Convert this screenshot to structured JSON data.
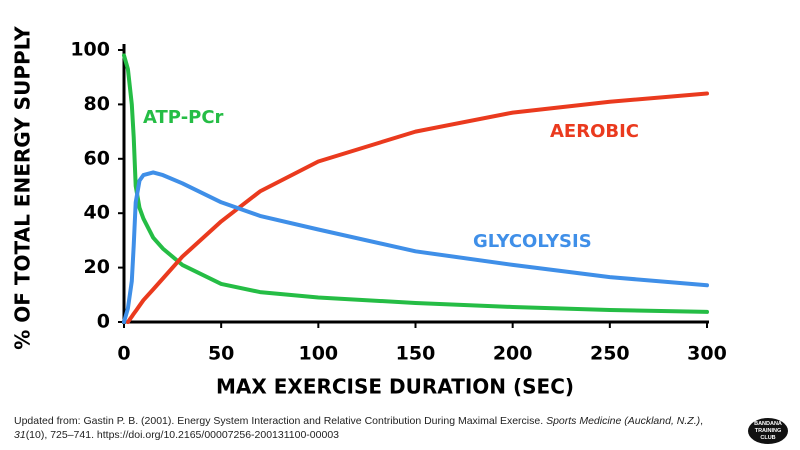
{
  "chart_data": {
    "type": "line",
    "ylabel": "% OF TOTAL ENERGY SUPPLY",
    "xlabel": "MAX EXERCISE DURATION (SEC)",
    "x": [
      0,
      2,
      4,
      5,
      6,
      8,
      10,
      15,
      20,
      30,
      50,
      70,
      100,
      150,
      200,
      250,
      300
    ],
    "series": [
      {
        "name": "ATP-PCr",
        "color": "#25bd45",
        "values": [
          98,
          93,
          80,
          68,
          50,
          42,
          38,
          31,
          27,
          21,
          14,
          11,
          9,
          7,
          5.5,
          4.4,
          3.7
        ]
      },
      {
        "name": "AEROBIC",
        "color": "#ea3a1e",
        "values": [
          null,
          0,
          2,
          3,
          4,
          6,
          8,
          12,
          16,
          24,
          37,
          48,
          59,
          70,
          77,
          81,
          84
        ]
      },
      {
        "name": "GLYCOLYSIS",
        "color": "#3f8fe8",
        "values": [
          0,
          5,
          15,
          28,
          44,
          52,
          54,
          55,
          54,
          51,
          44,
          39,
          34,
          26,
          21,
          16.5,
          13.5
        ]
      }
    ],
    "xlim": [
      0,
      300
    ],
    "ylim": [
      0,
      100
    ],
    "xticks": [
      0,
      50,
      100,
      150,
      200,
      250,
      300
    ],
    "yticks": [
      0,
      20,
      40,
      60,
      80,
      100
    ]
  },
  "footer": {
    "parts": [
      {
        "text": "Updated from: Gastin P. B. (2001). Energy System Interaction and Relative Contribution During Maximal Exercise. ",
        "italic": false
      },
      {
        "text": "Sports Medicine (Auckland, N.Z.)",
        "italic": true
      },
      {
        "text": ", ",
        "italic": false
      },
      {
        "text": "31",
        "italic": true
      },
      {
        "text": "(10), 725–741. https://doi.org/10.2165/00007256-200131100-00003",
        "italic": false
      }
    ]
  },
  "logo": "BANDANA TRAINING CLUB"
}
